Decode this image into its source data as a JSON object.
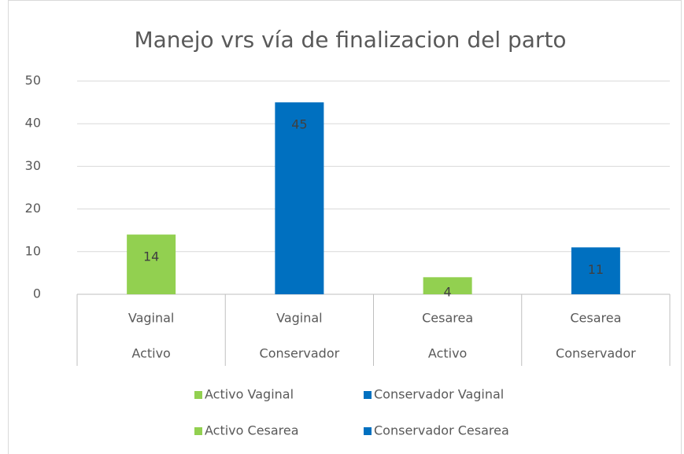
{
  "chart_data": {
    "type": "bar",
    "title": "Manejo vrs vía de finalizacion del parto",
    "categories": [
      [
        "Vaginal",
        "Activo"
      ],
      [
        "Vaginal",
        "Conservador"
      ],
      [
        "Cesarea",
        "Activo"
      ],
      [
        "Cesarea",
        "Conservador"
      ]
    ],
    "series": [
      {
        "name": "Activo Vaginal",
        "color": "#92d050",
        "values": [
          14,
          null,
          null,
          null
        ]
      },
      {
        "name": "Conservador Vaginal",
        "color": "#0070c0",
        "values": [
          null,
          45,
          null,
          null
        ]
      },
      {
        "name": "Activo Cesarea",
        "color": "#92d050",
        "values": [
          null,
          null,
          4,
          null
        ]
      },
      {
        "name": "Conservador Cesarea",
        "color": "#0070c0",
        "values": [
          null,
          null,
          null,
          11
        ]
      }
    ],
    "ylim": [
      0,
      50
    ],
    "yticks": [
      0,
      10,
      20,
      30,
      40,
      50
    ],
    "grid": true,
    "legend": "bottom"
  }
}
